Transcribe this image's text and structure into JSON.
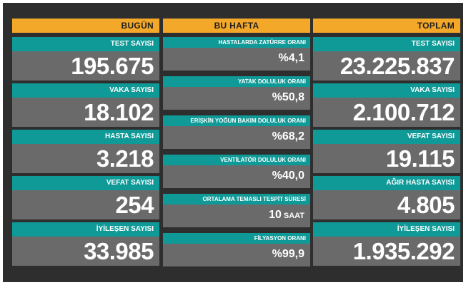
{
  "today": {
    "title": "BUGÜN",
    "items": [
      {
        "label": "TEST SAYISI",
        "value": "195.675"
      },
      {
        "label": "VAKA SAYISI",
        "value": "18.102"
      },
      {
        "label": "HASTA SAYISI",
        "value": "3.218"
      },
      {
        "label": "VEFAT SAYISI",
        "value": "254"
      },
      {
        "label": "İYİLEŞEN SAYISI",
        "value": "33.985"
      }
    ]
  },
  "week": {
    "title": "BU HAFTA",
    "items": [
      {
        "label": "HASTALARDA ZATÜRRE ORANI",
        "value": "%4,1",
        "unit": ""
      },
      {
        "label": "YATAK DOLULUK ORANI",
        "value": "%50,8",
        "unit": ""
      },
      {
        "label": "ERİŞKİN YOĞUN BAKIM DOLULUK ORANI",
        "value": "%68,2",
        "unit": ""
      },
      {
        "label": "VENTİLATÖR DOLULUK ORANI",
        "value": "%40,0",
        "unit": ""
      },
      {
        "label": "ORTALAMA TEMASLI TESPİT SÜRESİ",
        "value": "10",
        "unit": "SAAT"
      },
      {
        "label": "FİLYASYON ORANI",
        "value": "%99,9",
        "unit": ""
      }
    ]
  },
  "total": {
    "title": "TOPLAM",
    "items": [
      {
        "label": "TEST SAYISI",
        "value": "23.225.837"
      },
      {
        "label": "VAKA SAYISI",
        "value": "2.100.712"
      },
      {
        "label": "VEFAT SAYISI",
        "value": "19.115"
      },
      {
        "label": "AĞIR HASTA SAYISI",
        "value": "4.805"
      },
      {
        "label": "İYİLEŞEN SAYISI",
        "value": "1.935.292"
      }
    ]
  },
  "colors": {
    "header": "#f4a82a",
    "label_bar": "#0f9a98",
    "value_box": "#6a6a6a",
    "background": "#2e2e2e"
  }
}
